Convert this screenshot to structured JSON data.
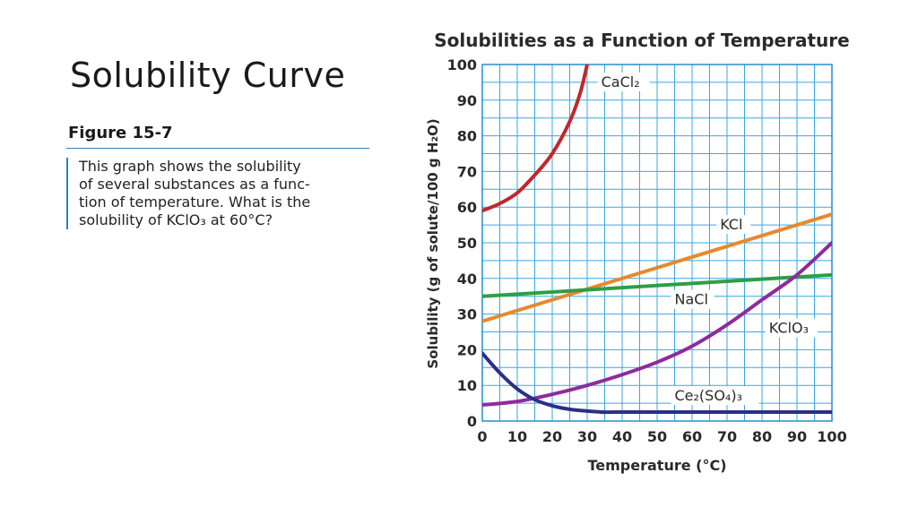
{
  "slide": {
    "title": "Solubility Curve"
  },
  "figure": {
    "label": "Figure 15-7",
    "caption_lines": [
      "This graph shows the solubility",
      "of several substances as a func-",
      "tion of temperature. What is the",
      "solubility of KClO₃ at 60°C?"
    ]
  },
  "chart_data": {
    "type": "line",
    "title": "Solubilities as a Function of Temperature",
    "xlabel": "Temperature (°C)",
    "ylabel": "Solubility (g of solute/100 g H₂O)",
    "xlim": [
      0,
      100
    ],
    "ylim": [
      0,
      100
    ],
    "xticks": [
      0,
      10,
      20,
      30,
      40,
      50,
      60,
      70,
      80,
      90,
      100
    ],
    "yticks": [
      0,
      10,
      20,
      30,
      40,
      50,
      60,
      70,
      80,
      90,
      100
    ],
    "grid": true,
    "series": [
      {
        "name": "CaCl₂",
        "color": "#c0272d",
        "points": [
          [
            0,
            59
          ],
          [
            5,
            61
          ],
          [
            10,
            64
          ],
          [
            15,
            69
          ],
          [
            20,
            75
          ],
          [
            25,
            84
          ],
          [
            28,
            92
          ],
          [
            30,
            100
          ]
        ]
      },
      {
        "name": "KCl",
        "color": "#e8892c",
        "points": [
          [
            0,
            28
          ],
          [
            100,
            58
          ]
        ]
      },
      {
        "name": "NaCl",
        "color": "#2e9e46",
        "points": [
          [
            0,
            35
          ],
          [
            100,
            41
          ]
        ]
      },
      {
        "name": "KClO₃",
        "color": "#8e2b9e",
        "points": [
          [
            0,
            4.5
          ],
          [
            10,
            5.5
          ],
          [
            20,
            7.5
          ],
          [
            30,
            10
          ],
          [
            40,
            13
          ],
          [
            50,
            16.5
          ],
          [
            60,
            21
          ],
          [
            70,
            27
          ],
          [
            80,
            34
          ],
          [
            90,
            41
          ],
          [
            100,
            50
          ]
        ]
      },
      {
        "name": "Ce₂(SO₄)₃",
        "color": "#2b2f86",
        "points": [
          [
            0,
            19
          ],
          [
            5,
            13.5
          ],
          [
            10,
            9
          ],
          [
            15,
            6
          ],
          [
            20,
            4.3
          ],
          [
            25,
            3.3
          ],
          [
            30,
            2.8
          ],
          [
            35,
            2.5
          ],
          [
            40,
            2.5
          ],
          [
            100,
            2.5
          ]
        ]
      }
    ],
    "series_labels": [
      {
        "series": "CaCl₂",
        "x": 34,
        "y": 94
      },
      {
        "series": "KCl",
        "x": 68,
        "y": 54
      },
      {
        "series": "NaCl",
        "x": 55,
        "y": 33
      },
      {
        "series": "KClO₃",
        "x": 82,
        "y": 25
      },
      {
        "series": "Ce₂(SO₄)₃",
        "x": 55,
        "y": 6
      }
    ]
  }
}
